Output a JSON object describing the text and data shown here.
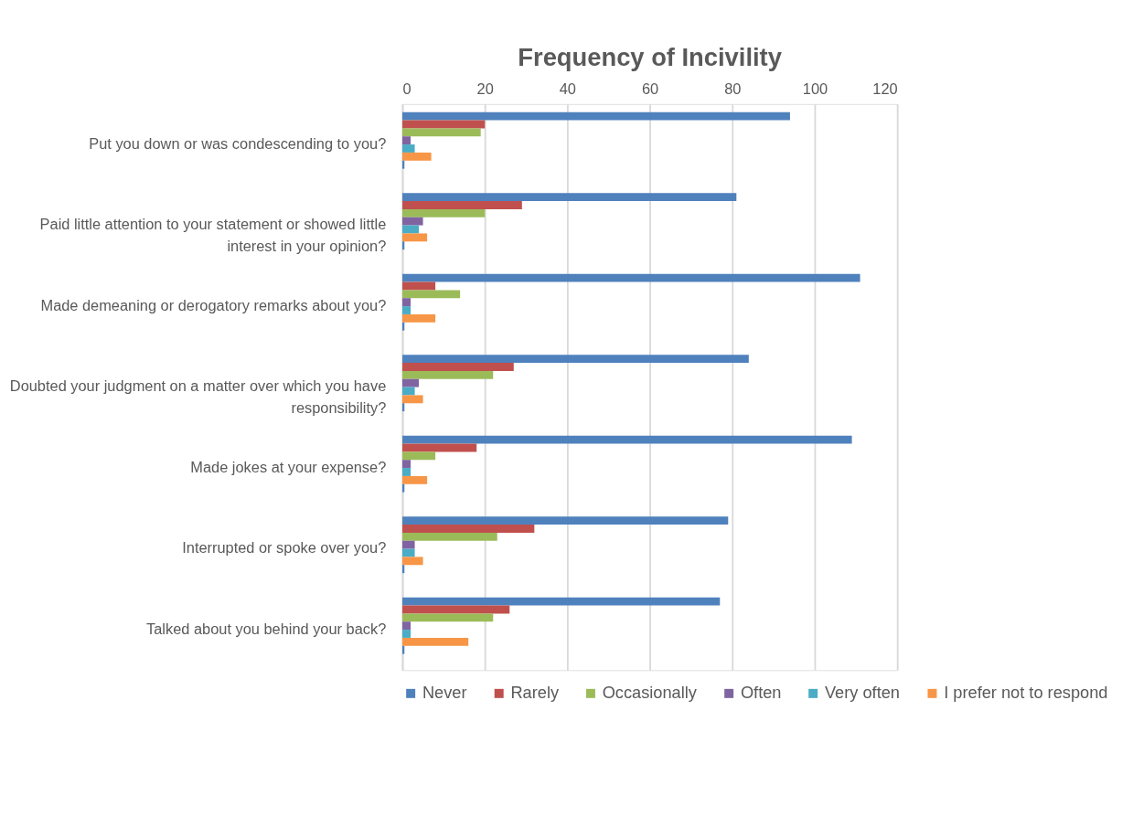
{
  "chart_data": {
    "type": "bar",
    "orientation": "horizontal",
    "title": "Frequency of Incivility",
    "categories": [
      "Put you down or was condescending to you?",
      "Paid little attention to your statement or showed little interest in your opinion?",
      "Made demeaning or derogatory remarks about you?",
      "Doubted your judgment on a matter over which you have responsibility?",
      "Made jokes at your expense?",
      "Interrupted or spoke over you?",
      "Talked about you behind your back?"
    ],
    "series": [
      {
        "name": "Never",
        "color": "#4f81bd",
        "values": [
          94,
          81,
          111,
          84,
          109,
          79,
          77
        ]
      },
      {
        "name": "Rarely",
        "color": "#c0504d",
        "values": [
          20,
          29,
          8,
          27,
          18,
          32,
          26
        ]
      },
      {
        "name": "Occasionally",
        "color": "#9bbb59",
        "values": [
          19,
          20,
          14,
          22,
          8,
          23,
          22
        ]
      },
      {
        "name": "Often",
        "color": "#8064a2",
        "values": [
          2,
          5,
          2,
          4,
          2,
          3,
          2
        ]
      },
      {
        "name": "Very often",
        "color": "#4bacc6",
        "values": [
          3,
          4,
          2,
          3,
          2,
          3,
          2
        ]
      },
      {
        "name": "I prefer not to respond",
        "color": "#f79646",
        "values": [
          7,
          6,
          8,
          5,
          6,
          5,
          16
        ]
      },
      {
        "color": "#4f81bd",
        "values": [
          0.5,
          0.5,
          0.5,
          0.5,
          0.5,
          0.5,
          0.5
        ]
      }
    ],
    "xlim": [
      0,
      120
    ],
    "xticks": [
      0,
      20,
      40,
      60,
      80,
      100,
      120
    ],
    "grid": "x",
    "legend": "bottom"
  }
}
